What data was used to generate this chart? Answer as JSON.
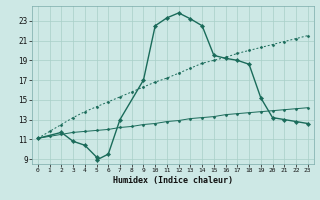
{
  "xlabel": "Humidex (Indice chaleur)",
  "background_color": "#cde8e5",
  "grid_color": "#a8cfc8",
  "line_color": "#1a6b5a",
  "xlim": [
    -0.5,
    23.5
  ],
  "ylim": [
    8.5,
    24.5
  ],
  "xticks": [
    0,
    1,
    2,
    3,
    4,
    5,
    6,
    7,
    8,
    9,
    10,
    11,
    12,
    13,
    14,
    15,
    16,
    17,
    18,
    19,
    20,
    21,
    22,
    23
  ],
  "yticks": [
    9,
    11,
    13,
    15,
    17,
    19,
    21,
    23
  ],
  "line_main_x": [
    0,
    2,
    3,
    4,
    5,
    5,
    6,
    7,
    9,
    10,
    11,
    12,
    13,
    14,
    15,
    16,
    17,
    18,
    19,
    20,
    21,
    22,
    23
  ],
  "line_main_y": [
    11.1,
    11.7,
    10.8,
    10.4,
    9.2,
    8.9,
    9.5,
    13.0,
    17.0,
    22.5,
    23.3,
    23.8,
    23.2,
    22.5,
    19.5,
    19.2,
    19.0,
    18.6,
    15.2,
    13.2,
    13.0,
    12.8,
    12.6
  ],
  "line_upper_x": [
    0,
    1,
    2,
    3,
    4,
    5,
    6,
    7,
    8,
    9,
    10,
    11,
    12,
    13,
    14,
    15,
    16,
    17,
    18,
    19,
    20,
    21,
    22,
    23
  ],
  "line_upper_y": [
    11.1,
    11.8,
    12.5,
    13.2,
    13.8,
    14.3,
    14.8,
    15.3,
    15.8,
    16.3,
    16.8,
    17.2,
    17.7,
    18.2,
    18.7,
    19.0,
    19.3,
    19.7,
    20.0,
    20.3,
    20.6,
    20.9,
    21.2,
    21.5
  ],
  "line_lower_x": [
    0,
    1,
    2,
    3,
    4,
    5,
    6,
    7,
    8,
    9,
    10,
    11,
    12,
    13,
    14,
    15,
    16,
    17,
    18,
    19,
    20,
    21,
    22,
    23
  ],
  "line_lower_y": [
    11.1,
    11.3,
    11.5,
    11.7,
    11.8,
    11.9,
    12.0,
    12.2,
    12.3,
    12.5,
    12.6,
    12.8,
    12.9,
    13.1,
    13.2,
    13.3,
    13.5,
    13.6,
    13.7,
    13.8,
    13.9,
    14.0,
    14.1,
    14.2
  ]
}
